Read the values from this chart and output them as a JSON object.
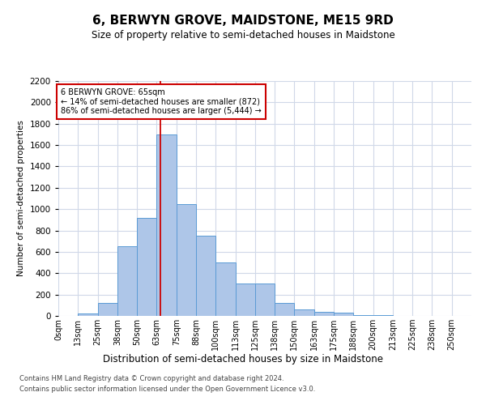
{
  "title": "6, BERWYN GROVE, MAIDSTONE, ME15 9RD",
  "subtitle": "Size of property relative to semi-detached houses in Maidstone",
  "xlabel": "Distribution of semi-detached houses by size in Maidstone",
  "ylabel": "Number of semi-detached properties",
  "categories": [
    "0sqm",
    "13sqm",
    "25sqm",
    "38sqm",
    "50sqm",
    "63sqm",
    "75sqm",
    "88sqm",
    "100sqm",
    "113sqm",
    "125sqm",
    "138sqm",
    "150sqm",
    "163sqm",
    "175sqm",
    "188sqm",
    "200sqm",
    "213sqm",
    "225sqm",
    "238sqm",
    "250sqm"
  ],
  "bar_values": [
    0,
    20,
    120,
    650,
    920,
    1700,
    1050,
    750,
    500,
    300,
    300,
    120,
    60,
    40,
    30,
    10,
    5,
    0,
    0,
    0,
    0
  ],
  "bar_color": "#aec6e8",
  "bar_edge_color": "#5b9bd5",
  "ylim_max": 2200,
  "yticks": [
    0,
    200,
    400,
    600,
    800,
    1000,
    1200,
    1400,
    1600,
    1800,
    2000,
    2200
  ],
  "annotation_title": "6 BERWYN GROVE: 65sqm",
  "annotation_line1": "← 14% of semi-detached houses are smaller (872)",
  "annotation_line2": "86% of semi-detached houses are larger (5,444) →",
  "footer_line1": "Contains HM Land Registry data © Crown copyright and database right 2024.",
  "footer_line2": "Contains public sector information licensed under the Open Government Licence v3.0.",
  "property_sqm": 65,
  "background_color": "#ffffff",
  "grid_color": "#d0d8e8",
  "vline_color": "#cc0000",
  "annotation_box_edge": "#cc0000",
  "bin_width": 12.5
}
